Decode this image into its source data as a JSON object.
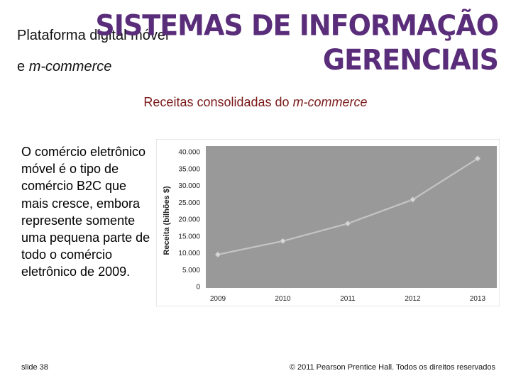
{
  "header": {
    "title_line1": "Plataforma digital móvel",
    "title_line2_prefix": "e ",
    "title_line2_italic": "m-commerce",
    "brand_line1": "SISTEMAS DE INFORMAÇÃO",
    "brand_line2": "GERENCIAIS"
  },
  "subtitle": {
    "prefix": "Receitas consolidadas do ",
    "italic": "m-commerce"
  },
  "body": {
    "text": "O comércio eletrônico móvel é o tipo de comércio B2C que mais cresce, embora represente somente uma pequena parte de todo o comércio eletrônico de 2009."
  },
  "footer": {
    "slide_label": "slide 38",
    "copyright": "© 2011 Pearson Prentice Hall. Todos os direitos reservados"
  },
  "colors": {
    "brand": "#5a2d7a",
    "subtitle": "#7a1818",
    "plot_bg": "#999999",
    "line": "#c4c4c4"
  },
  "chart_data": {
    "type": "line",
    "title": "",
    "xlabel": "",
    "ylabel": "Receita (bilhões $)",
    "categories": [
      "2009",
      "2010",
      "2011",
      "2012",
      "2013"
    ],
    "series": [
      {
        "values": [
          9500,
          13500,
          18700,
          25800,
          38000
        ]
      }
    ],
    "ylim": [
      0,
      40000
    ],
    "yticks": [
      0,
      5000,
      10000,
      15000,
      20000,
      25000,
      30000,
      35000,
      40000
    ],
    "ytick_labels": [
      "0",
      "5.000",
      "10.000",
      "15.000",
      "20.000",
      "25.000",
      "30.000",
      "35.000",
      "40.000"
    ],
    "grid": false,
    "legend": "none"
  }
}
